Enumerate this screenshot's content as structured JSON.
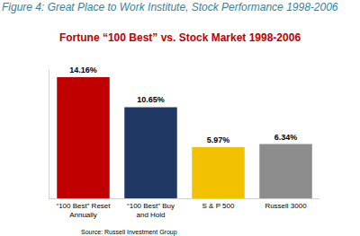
{
  "chart_data": {
    "type": "bar",
    "caption": "Figure 4: Great Place to Work Institute, Stock Performance 1998-2006",
    "title": "Fortune “100 Best” vs. Stock Market 1998-2006",
    "source": "Source: Russell Investment Group",
    "categories": [
      "“100 Best” Reset Annually",
      "“100 Best” Buy and Hold",
      "S & P 500",
      "Russell 3000"
    ],
    "values": [
      14.16,
      10.65,
      5.97,
      6.34
    ],
    "value_labels": [
      "14.16%",
      "10.65%",
      "5.97%",
      "6.34%"
    ],
    "colors": [
      "#c00000",
      "#1f3864",
      "#f2c200",
      "#8c8c8c"
    ],
    "ylim": [
      0,
      15
    ],
    "grid": false,
    "data_labels": true,
    "tick_labels": "x"
  }
}
